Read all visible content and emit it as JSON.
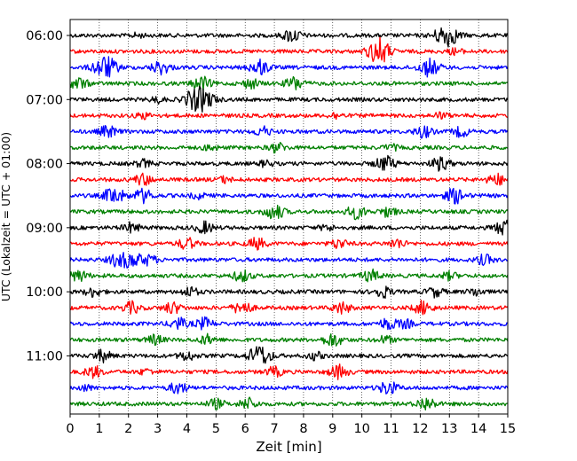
{
  "chart_data": {
    "type": "line",
    "title": "",
    "xlabel": "Zeit  [min]",
    "ylabel": "UTC (Lokalzeit = UTC + 01:00)",
    "xlim": [
      0,
      15
    ],
    "x_ticks": [
      "0",
      "1",
      "2",
      "3",
      "4",
      "5",
      "6",
      "7",
      "8",
      "9",
      "10",
      "11",
      "12",
      "13",
      "14",
      "15"
    ],
    "y_ticks": [
      "06:00",
      "07:00",
      "08:00",
      "09:00",
      "10:00",
      "11:00"
    ],
    "y_tick_hours": [
      6,
      7,
      8,
      9,
      10,
      11
    ],
    "grid": "vertical dotted at each minute",
    "trace_colors": [
      "#000000",
      "#ff0000",
      "#0000ff",
      "#008000"
    ],
    "trace_interval_minutes": 15,
    "traces": [
      {
        "start": "06:00",
        "events": [
          [
            7.6,
            7
          ],
          [
            12.9,
            12
          ],
          [
            2.3,
            2
          ]
        ]
      },
      {
        "start": "06:15",
        "events": [
          [
            10.5,
            9
          ],
          [
            10.7,
            7
          ],
          [
            13.2,
            3
          ]
        ]
      },
      {
        "start": "06:30",
        "events": [
          [
            1.2,
            12
          ],
          [
            3.1,
            7
          ],
          [
            6.5,
            8
          ],
          [
            12.3,
            9
          ]
        ]
      },
      {
        "start": "06:45",
        "events": [
          [
            0.3,
            6
          ],
          [
            4.5,
            7
          ],
          [
            6.2,
            5
          ],
          [
            7.7,
            7
          ]
        ]
      },
      {
        "start": "07:00",
        "events": [
          [
            4.2,
            8
          ],
          [
            4.6,
            10
          ],
          [
            3.0,
            3
          ]
        ]
      },
      {
        "start": "07:15",
        "events": [
          [
            2.5,
            3
          ],
          [
            9.1,
            3
          ],
          [
            12.7,
            3
          ]
        ]
      },
      {
        "start": "07:30",
        "events": [
          [
            1.3,
            6
          ],
          [
            6.6,
            5
          ],
          [
            12.1,
            6
          ],
          [
            13.4,
            5
          ]
        ]
      },
      {
        "start": "07:45",
        "events": [
          [
            7.1,
            5
          ],
          [
            4.8,
            3
          ],
          [
            11.0,
            3
          ]
        ]
      },
      {
        "start": "08:00",
        "events": [
          [
            2.5,
            4
          ],
          [
            10.8,
            8
          ],
          [
            12.7,
            7
          ],
          [
            6.7,
            3
          ]
        ]
      },
      {
        "start": "08:15",
        "events": [
          [
            2.5,
            6
          ],
          [
            14.6,
            6
          ],
          [
            5.3,
            3
          ]
        ]
      },
      {
        "start": "08:30",
        "events": [
          [
            1.5,
            9
          ],
          [
            2.5,
            7
          ],
          [
            13.2,
            8
          ],
          [
            4.4,
            3
          ]
        ]
      },
      {
        "start": "08:45",
        "events": [
          [
            7.0,
            8
          ],
          [
            9.8,
            7
          ],
          [
            10.9,
            5
          ]
        ]
      },
      {
        "start": "09:00",
        "events": [
          [
            2.1,
            5
          ],
          [
            4.6,
            6
          ],
          [
            14.9,
            8
          ],
          [
            8.8,
            3
          ]
        ]
      },
      {
        "start": "09:15",
        "events": [
          [
            4.0,
            6
          ],
          [
            6.4,
            6
          ],
          [
            9.2,
            5
          ],
          [
            11.2,
            5
          ]
        ]
      },
      {
        "start": "09:30",
        "events": [
          [
            1.6,
            6
          ],
          [
            2.1,
            8
          ],
          [
            2.7,
            5
          ],
          [
            14.2,
            5
          ]
        ]
      },
      {
        "start": "09:45",
        "events": [
          [
            0.3,
            6
          ],
          [
            5.9,
            6
          ],
          [
            10.3,
            6
          ],
          [
            13.0,
            4
          ]
        ]
      },
      {
        "start": "10:00",
        "events": [
          [
            0.8,
            5
          ],
          [
            4.1,
            5
          ],
          [
            10.7,
            6
          ],
          [
            12.5,
            5
          ],
          [
            13.9,
            4
          ]
        ]
      },
      {
        "start": "10:15",
        "events": [
          [
            2.1,
            6
          ],
          [
            3.5,
            6
          ],
          [
            5.9,
            7
          ],
          [
            9.3,
            6
          ],
          [
            12.1,
            7
          ]
        ]
      },
      {
        "start": "10:30",
        "events": [
          [
            3.7,
            6
          ],
          [
            4.6,
            6
          ],
          [
            10.9,
            6
          ],
          [
            11.5,
            4
          ]
        ]
      },
      {
        "start": "10:45",
        "events": [
          [
            2.9,
            5
          ],
          [
            4.7,
            5
          ],
          [
            9.0,
            7
          ],
          [
            10.8,
            4
          ]
        ]
      },
      {
        "start": "11:00",
        "events": [
          [
            1.1,
            6
          ],
          [
            4.0,
            5
          ],
          [
            6.5,
            11
          ],
          [
            8.4,
            4
          ]
        ]
      },
      {
        "start": "11:15",
        "events": [
          [
            0.8,
            6
          ],
          [
            7.0,
            5
          ],
          [
            9.2,
            7
          ],
          [
            2.6,
            3
          ]
        ]
      },
      {
        "start": "11:30",
        "events": [
          [
            3.7,
            6
          ],
          [
            10.9,
            7
          ],
          [
            0.5,
            3
          ]
        ]
      },
      {
        "start": "11:45",
        "events": [
          [
            5.0,
            5
          ],
          [
            6.1,
            6
          ],
          [
            12.2,
            7
          ]
        ]
      }
    ]
  }
}
